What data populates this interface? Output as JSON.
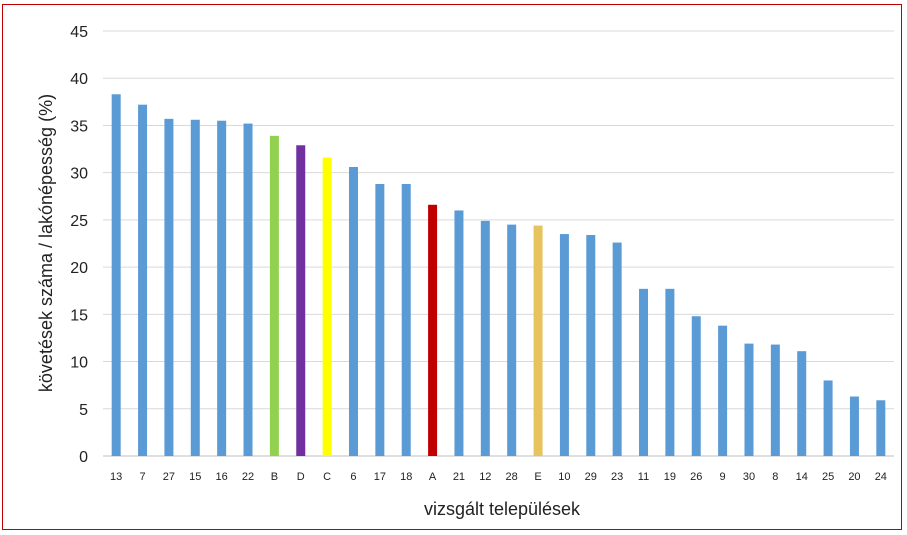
{
  "chart_data": {
    "type": "bar",
    "title": "",
    "xlabel": "vizsgált települések",
    "ylabel": "követések száma / lakónépesség (%)",
    "ylim": [
      0,
      45
    ],
    "yticks": [
      0,
      5,
      10,
      15,
      20,
      25,
      30,
      35,
      40,
      45
    ],
    "grid": true,
    "legend": "none",
    "categories": [
      "13",
      "7",
      "27",
      "15",
      "16",
      "22",
      "B",
      "D",
      "C",
      "6",
      "17",
      "18",
      "A",
      "21",
      "12",
      "28",
      "E",
      "10",
      "29",
      "23",
      "11",
      "19",
      "26",
      "9",
      "30",
      "8",
      "14",
      "25",
      "20",
      "24"
    ],
    "values": [
      38.3,
      37.2,
      35.7,
      35.6,
      35.5,
      35.2,
      33.9,
      32.9,
      31.6,
      30.6,
      28.8,
      28.8,
      26.6,
      26.0,
      24.9,
      24.5,
      24.4,
      23.5,
      23.4,
      22.6,
      17.7,
      17.7,
      14.8,
      13.8,
      11.9,
      11.8,
      11.1,
      8.0,
      6.3,
      5.9
    ],
    "colors": [
      "#5b9bd5",
      "#5b9bd5",
      "#5b9bd5",
      "#5b9bd5",
      "#5b9bd5",
      "#5b9bd5",
      "#92d050",
      "#7030a0",
      "#ffff00",
      "#5b9bd5",
      "#5b9bd5",
      "#5b9bd5",
      "#c00000",
      "#5b9bd5",
      "#5b9bd5",
      "#5b9bd5",
      "#e6c35c",
      "#5b9bd5",
      "#5b9bd5",
      "#5b9bd5",
      "#5b9bd5",
      "#5b9bd5",
      "#5b9bd5",
      "#5b9bd5",
      "#5b9bd5",
      "#5b9bd5",
      "#5b9bd5",
      "#5b9bd5",
      "#5b9bd5",
      "#5b9bd5"
    ]
  }
}
